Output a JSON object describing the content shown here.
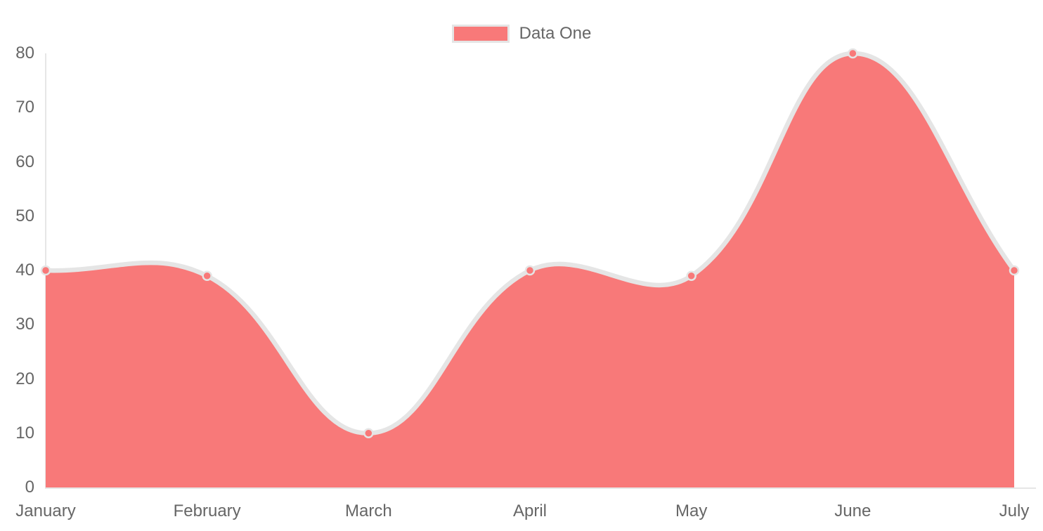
{
  "page": {
    "background": "#FFFFFF"
  },
  "legend": {
    "position": "top",
    "items": [
      {
        "label": "Data One",
        "color": "#F87979",
        "border_color": "#E5E5E5"
      }
    ]
  },
  "chart_data": {
    "type": "area",
    "title": "",
    "xlabel": "",
    "ylabel": "",
    "categories": [
      "January",
      "February",
      "March",
      "April",
      "May",
      "June",
      "July"
    ],
    "series": [
      {
        "name": "Data One",
        "values": [
          40,
          39,
          10,
          40,
          39,
          80,
          40
        ]
      }
    ],
    "ylim": [
      0,
      80
    ],
    "y_ticks": [
      0,
      10,
      20,
      30,
      40,
      50,
      60,
      70,
      80
    ],
    "grid": false,
    "legend_position": "top",
    "line_tension": 0.4,
    "colors": {
      "fill": "#F87979",
      "line": "#E5E5E5",
      "point_fill": "#F87979",
      "point_border": "#E5E5E5",
      "axis": "#E6E6E6",
      "tick_text": "#666666"
    }
  }
}
